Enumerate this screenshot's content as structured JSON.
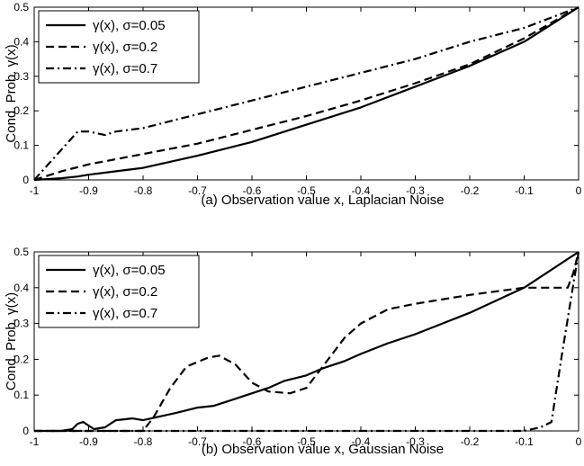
{
  "chart_data": [
    {
      "type": "line",
      "xlabel": "(a) Observation value x, Laplacian Noise",
      "ylabel": "Cond. Prob. γ(x)",
      "xlim": [
        -1,
        0
      ],
      "ylim": [
        0,
        0.5
      ],
      "xticks": [
        "-1",
        "-0.9",
        "-0.8",
        "-0.7",
        "-0.6",
        "-0.5",
        "-0.4",
        "-0.3",
        "-0.2",
        "-0.1",
        "0"
      ],
      "yticks": [
        "0",
        "0.1",
        "0.2",
        "0.3",
        "0.4",
        "0.5"
      ],
      "grid": false,
      "legend_position": "top-left",
      "series": [
        {
          "name": "γ(x), σ=0.05",
          "style": "solid",
          "x": [
            -1,
            -0.95,
            -0.92,
            -0.9,
            -0.85,
            -0.8,
            -0.7,
            -0.6,
            -0.5,
            -0.4,
            -0.3,
            -0.2,
            -0.1,
            0
          ],
          "y": [
            0.0,
            0.005,
            0.01,
            0.015,
            0.025,
            0.035,
            0.07,
            0.11,
            0.16,
            0.21,
            0.27,
            0.33,
            0.4,
            0.5
          ]
        },
        {
          "name": "γ(x), σ=0.2",
          "style": "dashed",
          "x": [
            -1,
            -0.95,
            -0.9,
            -0.8,
            -0.7,
            -0.6,
            -0.5,
            -0.4,
            -0.3,
            -0.2,
            -0.1,
            0
          ],
          "y": [
            0.0,
            0.025,
            0.045,
            0.075,
            0.105,
            0.145,
            0.185,
            0.23,
            0.28,
            0.335,
            0.41,
            0.5
          ]
        },
        {
          "name": "γ(x), σ=0.7",
          "style": "dashdot",
          "x": [
            -1,
            -0.96,
            -0.92,
            -0.9,
            -0.87,
            -0.85,
            -0.8,
            -0.7,
            -0.6,
            -0.5,
            -0.4,
            -0.3,
            -0.2,
            -0.1,
            0
          ],
          "y": [
            0.0,
            0.07,
            0.14,
            0.14,
            0.13,
            0.14,
            0.15,
            0.19,
            0.23,
            0.27,
            0.31,
            0.35,
            0.4,
            0.44,
            0.5
          ]
        }
      ]
    },
    {
      "type": "line",
      "xlabel": "(b) Observation value x, Gaussian Noise",
      "ylabel": "Cond. Prob. γ(x)",
      "xlim": [
        -1,
        0
      ],
      "ylim": [
        0,
        0.5
      ],
      "xticks": [
        "-1",
        "-0.9",
        "-0.8",
        "-0.7",
        "-0.6",
        "-0.5",
        "-0.4",
        "-0.3",
        "-0.2",
        "-0.1",
        "0"
      ],
      "yticks": [
        "0",
        "0.1",
        "0.2",
        "0.3",
        "0.4",
        "0.5"
      ],
      "grid": false,
      "legend_position": "top-left",
      "series": [
        {
          "name": "γ(x), σ=0.05",
          "style": "solid",
          "x": [
            -1,
            -0.95,
            -0.93,
            -0.92,
            -0.91,
            -0.89,
            -0.87,
            -0.85,
            -0.82,
            -0.8,
            -0.77,
            -0.74,
            -0.7,
            -0.67,
            -0.63,
            -0.6,
            -0.57,
            -0.54,
            -0.5,
            -0.47,
            -0.43,
            -0.4,
            -0.35,
            -0.3,
            -0.2,
            -0.1,
            0
          ],
          "y": [
            0.0,
            0.0,
            0.005,
            0.02,
            0.025,
            0.005,
            0.01,
            0.03,
            0.035,
            0.03,
            0.04,
            0.05,
            0.065,
            0.07,
            0.09,
            0.105,
            0.12,
            0.14,
            0.155,
            0.175,
            0.195,
            0.215,
            0.245,
            0.27,
            0.33,
            0.4,
            0.5
          ]
        },
        {
          "name": "γ(x), σ=0.2",
          "style": "dashed",
          "x": [
            -1,
            -0.9,
            -0.8,
            -0.78,
            -0.75,
            -0.72,
            -0.68,
            -0.66,
            -0.63,
            -0.6,
            -0.57,
            -0.53,
            -0.5,
            -0.47,
            -0.43,
            -0.4,
            -0.35,
            -0.3,
            -0.2,
            -0.1,
            -0.02,
            -0.01,
            0
          ],
          "y": [
            0.0,
            0.0,
            0.0,
            0.04,
            0.12,
            0.18,
            0.205,
            0.21,
            0.185,
            0.135,
            0.11,
            0.105,
            0.12,
            0.18,
            0.26,
            0.3,
            0.34,
            0.355,
            0.38,
            0.4,
            0.4,
            0.44,
            0.5
          ]
        },
        {
          "name": "γ(x), σ=0.7",
          "style": "dashdot",
          "x": [
            -1,
            -0.5,
            -0.1,
            -0.07,
            -0.05,
            -0.03,
            0
          ],
          "y": [
            0.0,
            0.0,
            0.0,
            0.01,
            0.025,
            0.22,
            0.5
          ]
        }
      ]
    }
  ]
}
